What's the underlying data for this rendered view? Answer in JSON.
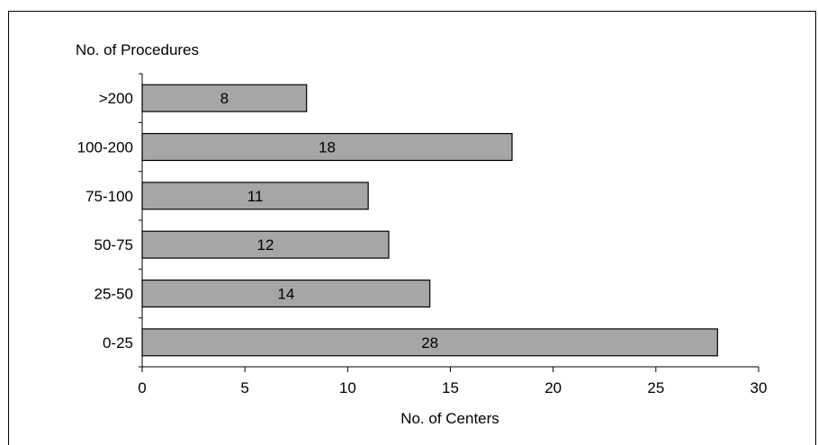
{
  "chart_data": {
    "type": "bar",
    "orientation": "horizontal",
    "ylabel": "No. of Procedures",
    "xlabel": "No. of Centers",
    "categories": [
      "0-25",
      "25-50",
      "50-75",
      "75-100",
      "100-200",
      ">200"
    ],
    "values": [
      28,
      14,
      12,
      11,
      18,
      8
    ],
    "xlim": [
      0,
      30
    ],
    "xticks": [
      0,
      5,
      10,
      15,
      20,
      25,
      30
    ],
    "grid": false,
    "legend": "none",
    "bar_color": "#a6a6a6",
    "bar_stroke": "#000000"
  }
}
